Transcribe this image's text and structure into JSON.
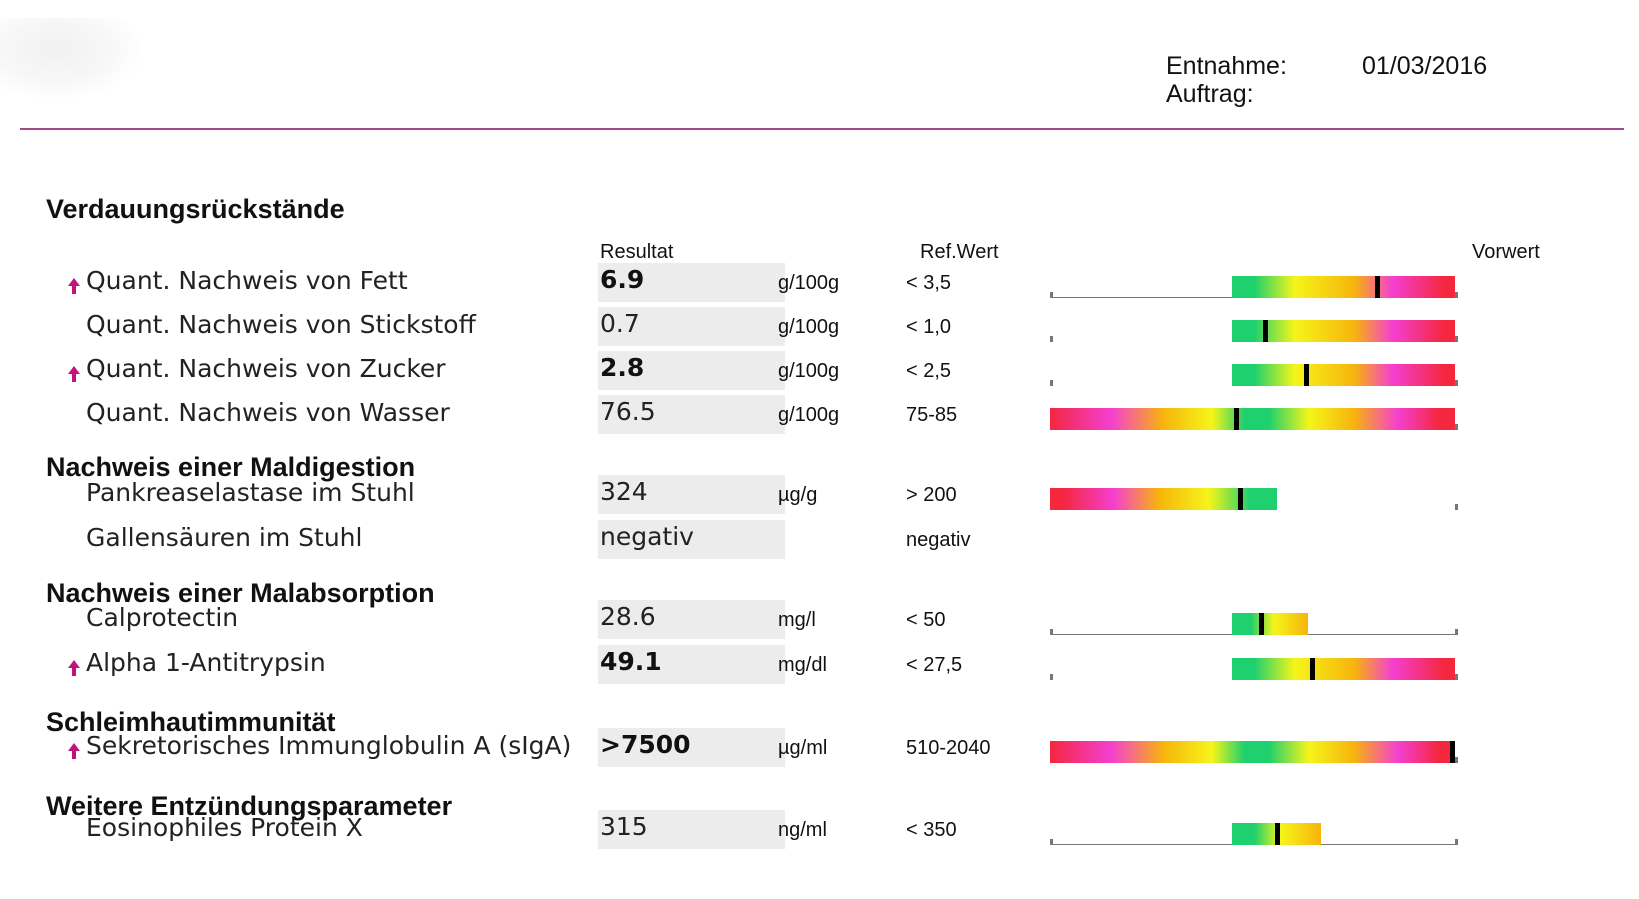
{
  "header": {
    "entnahme_label": "Entnahme:",
    "entnahme_value": "01/03/2016",
    "auftrag_label": "Auftrag:",
    "auftrag_value": ""
  },
  "columns": {
    "resultat": "Resultat",
    "refwert": "Ref.Wert",
    "vorwert": "Vorwert"
  },
  "colors": {
    "accent_rule": "#a04a8a",
    "arrow": "#c0147a",
    "green": "#1fd06e",
    "yellow": "#f5f51a",
    "orange": "#f7b40c",
    "pink": "#f43fd2",
    "red": "#f4273f",
    "result_box": "#ececec"
  },
  "sections": [
    {
      "title": "Verdauungsrückstände",
      "rows": [
        {
          "label": "Quant. Nachweis von Fett",
          "value": "6.9",
          "unit": "g/100g",
          "ref": "< 3,5",
          "flag": "high-arrow-icon",
          "bold": true,
          "gauge": "upper",
          "gauge_value": 0.65,
          "gauge_extent": 1.0
        },
        {
          "label": "Quant. Nachweis von Stickstoff",
          "value": "0.7",
          "unit": "g/100g",
          "ref": "< 1,0",
          "flag": "",
          "bold": false,
          "gauge": "upper",
          "gauge_value": 0.15,
          "gauge_extent": 1.0
        },
        {
          "label": "Quant. Nachweis von Zucker",
          "value": "2.8",
          "unit": "g/100g",
          "ref": "< 2,5",
          "flag": "high-arrow-icon",
          "bold": true,
          "gauge": "upper",
          "gauge_value": 0.33,
          "gauge_extent": 1.0
        },
        {
          "label": "Quant. Nachweis von Wasser",
          "value": "76.5",
          "unit": "g/100g",
          "ref": "75-85",
          "flag": "",
          "bold": false,
          "gauge": "range",
          "gauge_value": 0.46,
          "gauge_extent": 1.0
        }
      ]
    },
    {
      "title": "Nachweis einer Maldigestion",
      "rows": [
        {
          "label": "Pankreaselastase im Stuhl",
          "value": "324",
          "unit": "µg/g",
          "ref": "> 200",
          "flag": "",
          "bold": false,
          "gauge": "lower",
          "gauge_value": 0.47,
          "gauge_extent": 0.56
        },
        {
          "label": "Gallensäuren im Stuhl",
          "value": "negativ",
          "unit": "",
          "ref": "negativ",
          "flag": "",
          "bold": false,
          "gauge": "none",
          "gauge_value": null,
          "gauge_extent": null
        }
      ]
    },
    {
      "title": "Nachweis einer Malabsorption",
      "rows": [
        {
          "label": "Calprotectin",
          "value": "28.6",
          "unit": "mg/l",
          "ref": "< 50",
          "flag": "",
          "bold": false,
          "gauge": "upper",
          "gauge_value": 0.13,
          "gauge_extent": 0.34
        },
        {
          "label": "Alpha 1-Antitrypsin",
          "value": "49.1",
          "unit": "mg/dl",
          "ref": "< 27,5",
          "flag": "high-arrow-icon",
          "bold": true,
          "gauge": "upper",
          "gauge_value": 0.36,
          "gauge_extent": 1.0
        }
      ]
    },
    {
      "title": "Schleimhautimmunität",
      "rows": [
        {
          "label": "Sekretorisches Immunglobulin A (sIgA)",
          "value": ">7500",
          "unit": "µg/ml",
          "ref": "510-2040",
          "flag": "high-arrow-icon",
          "bold": true,
          "gauge": "range",
          "gauge_value": 1.0,
          "gauge_extent": 1.0
        }
      ]
    },
    {
      "title": "Weitere Entzündungsparameter",
      "rows": [
        {
          "label": "Eosinophiles Protein X",
          "value": "315",
          "unit": "ng/ml",
          "ref": "< 350",
          "flag": "",
          "bold": false,
          "gauge": "upper",
          "gauge_value": 0.2,
          "gauge_extent": 0.4
        }
      ]
    }
  ]
}
